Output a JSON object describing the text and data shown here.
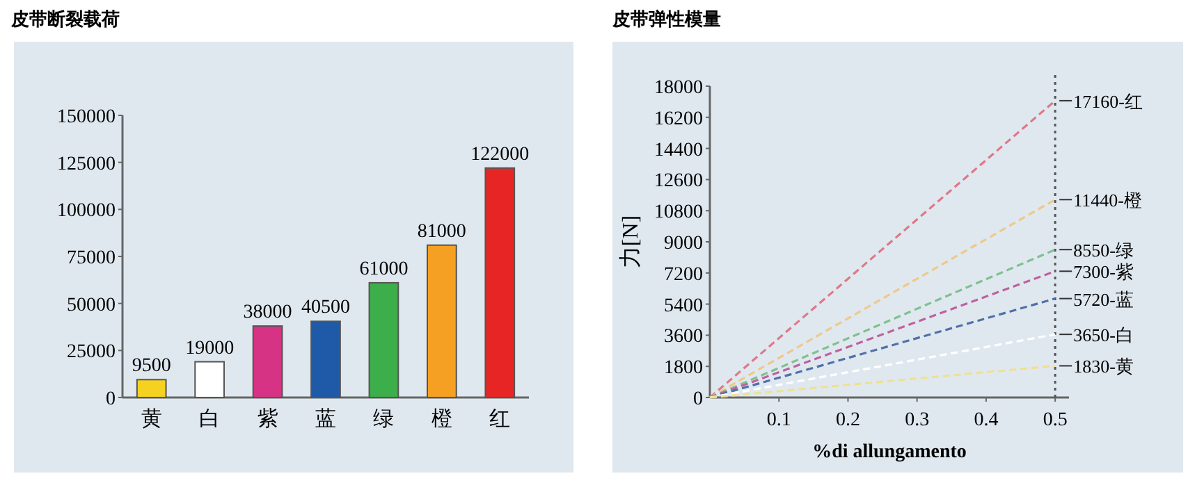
{
  "chart_data": [
    {
      "type": "bar",
      "title": "皮带断裂载荷",
      "categories": [
        "黄",
        "白",
        "紫",
        "蓝",
        "绿",
        "橙",
        "红"
      ],
      "values": [
        9500,
        19000,
        38000,
        40500,
        61000,
        81000,
        122000
      ],
      "colors": [
        "#f5d21f",
        "#ffffff",
        "#d63384",
        "#1f5aa8",
        "#3cae4a",
        "#f5a023",
        "#e82525"
      ],
      "ylim": [
        0,
        150000
      ],
      "yticks": [
        0,
        25000,
        50000,
        75000,
        100000,
        125000,
        150000
      ],
      "data_labels": true,
      "grid": false
    },
    {
      "type": "line",
      "title": "皮带弹性模量",
      "xlabel": "%di allungamento",
      "ylabel": "力[N]",
      "xlim": [
        0,
        0.52
      ],
      "xticks": [
        0.1,
        0.2,
        0.3,
        0.4,
        0.5
      ],
      "ylim": [
        0,
        18000
      ],
      "yticks": [
        0,
        1800,
        3600,
        5400,
        7200,
        9000,
        10800,
        12600,
        14400,
        16200,
        18000
      ],
      "line_style": "dashed",
      "marker": "none",
      "grid": false,
      "x": [
        0,
        0.5
      ],
      "ref_lines": [
        {
          "axis": "x",
          "value": 0.5,
          "color": "#555555",
          "line_style": "dotted"
        }
      ],
      "series": [
        {
          "name": "17160-红",
          "color": "#e07888",
          "values": [
            0,
            17160
          ]
        },
        {
          "name": "11440-橙",
          "color": "#f0c888",
          "values": [
            0,
            11440
          ]
        },
        {
          "name": "8550-绿",
          "color": "#80c090",
          "values": [
            0,
            8550
          ]
        },
        {
          "name": "7300-紫",
          "color": "#c060a0",
          "values": [
            0,
            7300
          ]
        },
        {
          "name": "5720-蓝",
          "color": "#5070a8",
          "values": [
            0,
            5720
          ]
        },
        {
          "name": "3650-白",
          "color": "#ffffff",
          "values": [
            0,
            3650
          ]
        },
        {
          "name": "1830-黄",
          "color": "#f0e090",
          "values": [
            0,
            1830
          ]
        }
      ]
    }
  ]
}
